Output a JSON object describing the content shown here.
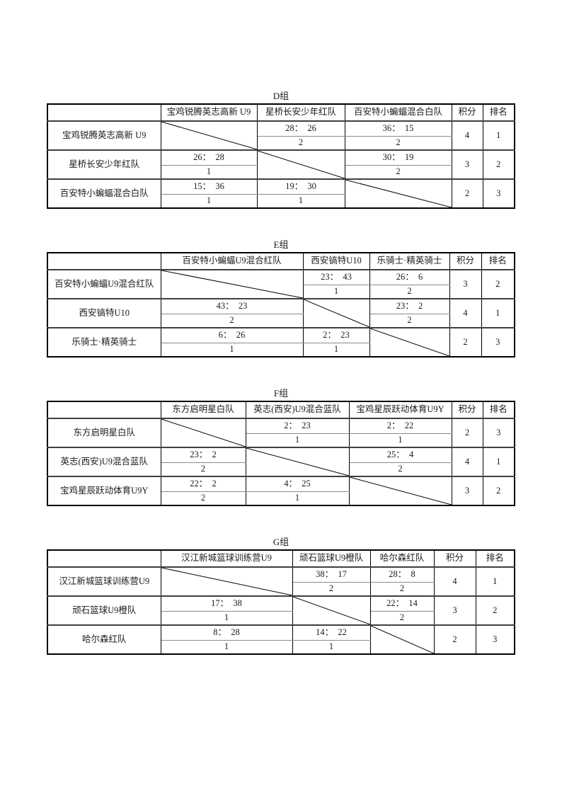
{
  "labels": {
    "points_header": "积分",
    "rank_header": "排名"
  },
  "groups": [
    {
      "title": "D组",
      "opponents": [
        "宝鸡锐腾英志高新 U9",
        "星桥长安少年红队",
        "百安特小蝙蝠混合白队"
      ],
      "teams": [
        {
          "name": "宝鸡锐腾英志高新 U9",
          "results": [
            null,
            {
              "score": "28：  26",
              "points": "2"
            },
            {
              "score": "36：  15",
              "points": "2"
            }
          ],
          "points": "4",
          "rank": "1"
        },
        {
          "name": "星桥长安少年红队",
          "results": [
            {
              "score": "26：  28",
              "points": "1"
            },
            null,
            {
              "score": "30：  19",
              "points": "2"
            }
          ],
          "points": "3",
          "rank": "2"
        },
        {
          "name": "百安特小蝙蝠混合白队",
          "results": [
            {
              "score": "15：  36",
              "points": "1"
            },
            {
              "score": "19：  30",
              "points": "1"
            },
            null
          ],
          "points": "2",
          "rank": "3"
        }
      ]
    },
    {
      "title": "E组",
      "opponents": [
        "百安特小蝙蝠U9混合红队",
        "西安镐特U10",
        "乐骑士·精英骑士"
      ],
      "teams": [
        {
          "name": "百安特小蝙蝠U9混合红队",
          "results": [
            null,
            {
              "score": "23：  43",
              "points": "1"
            },
            {
              "score": "26：  6",
              "points": "2"
            }
          ],
          "points": "3",
          "rank": "2"
        },
        {
          "name": "西安镐特U10",
          "results": [
            {
              "score": "43：  23",
              "points": "2"
            },
            null,
            {
              "score": "23：  2",
              "points": "2"
            }
          ],
          "points": "4",
          "rank": "1"
        },
        {
          "name": "乐骑士·精英骑士",
          "results": [
            {
              "score": "6：  26",
              "points": "1"
            },
            {
              "score": "2：  23",
              "points": "1"
            },
            null
          ],
          "points": "2",
          "rank": "3"
        }
      ]
    },
    {
      "title": "F组",
      "opponents": [
        "东方启明星白队",
        "英志(西安)U9混合蓝队",
        "宝鸡星辰跃动体育U9Y"
      ],
      "teams": [
        {
          "name": "东方启明星白队",
          "results": [
            null,
            {
              "score": "2：  23",
              "points": "1"
            },
            {
              "score": "2：  22",
              "points": "1"
            }
          ],
          "points": "2",
          "rank": "3"
        },
        {
          "name": "英志(西安)U9混合蓝队",
          "results": [
            {
              "score": "23：  2",
              "points": "2"
            },
            null,
            {
              "score": "25：  4",
              "points": "2"
            }
          ],
          "points": "4",
          "rank": "1"
        },
        {
          "name": "宝鸡星辰跃动体育U9Y",
          "results": [
            {
              "score": "22：  2",
              "points": "2"
            },
            {
              "score": "4：  25",
              "points": "1"
            },
            null
          ],
          "points": "3",
          "rank": "2"
        }
      ]
    },
    {
      "title": "G组",
      "opponents": [
        "汉江新城篮球训练营U9",
        "顽石篮球U9橙队",
        "哈尔森红队"
      ],
      "teams": [
        {
          "name": "汉江新城篮球训练营U9",
          "results": [
            null,
            {
              "score": "38：  17",
              "points": "2"
            },
            {
              "score": "28：  8",
              "points": "2"
            }
          ],
          "points": "4",
          "rank": "1"
        },
        {
          "name": "顽石篮球U9橙队",
          "results": [
            {
              "score": "17：  38",
              "points": "1"
            },
            null,
            {
              "score": "22：  14",
              "points": "2"
            }
          ],
          "points": "3",
          "rank": "2"
        },
        {
          "name": "哈尔森红队",
          "results": [
            {
              "score": "8：  28",
              "points": "1"
            },
            {
              "score": "14：  22",
              "points": "1"
            },
            null
          ],
          "points": "2",
          "rank": "3"
        }
      ]
    }
  ]
}
